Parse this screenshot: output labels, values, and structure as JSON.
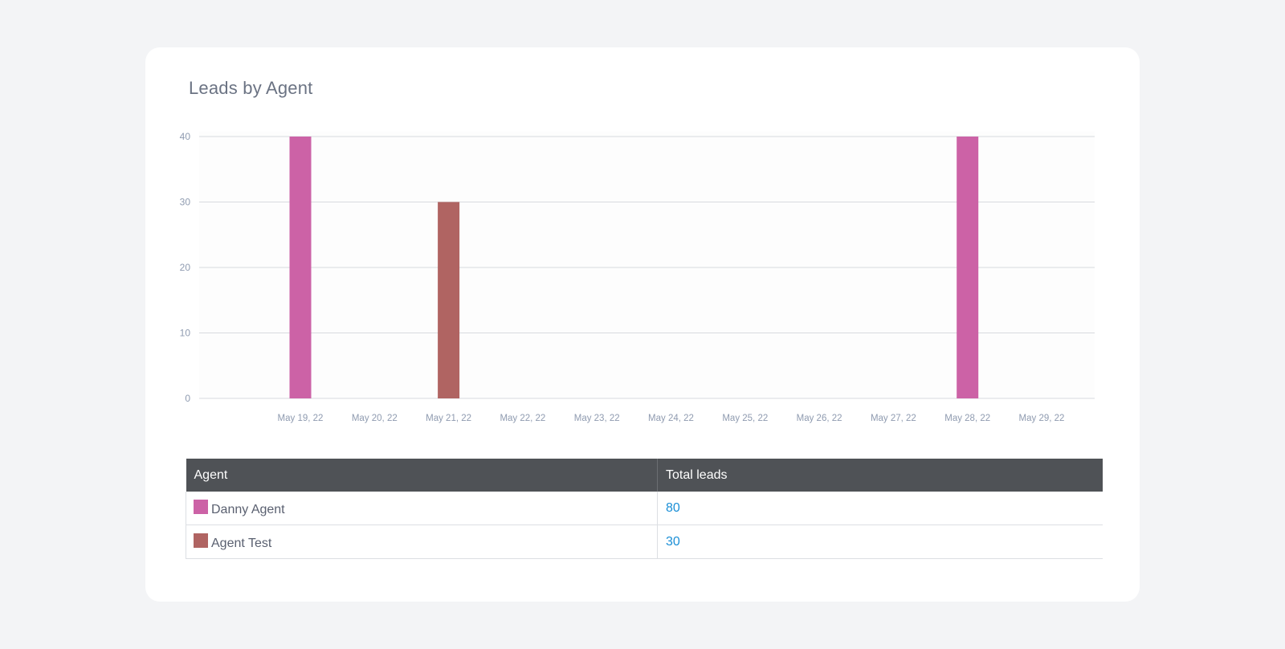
{
  "card": {
    "title": "Leads by Agent"
  },
  "chart_data": {
    "type": "bar",
    "title": "Leads by Agent",
    "xlabel": "",
    "ylabel": "",
    "categories": [
      "May 19, 22",
      "May 20, 22",
      "May 21, 22",
      "May 22, 22",
      "May 23, 22",
      "May 24, 22",
      "May 25, 22",
      "May 26, 22",
      "May 27, 22",
      "May 28, 22",
      "May 29, 22"
    ],
    "series": [
      {
        "name": "Danny Agent",
        "color": "#cc62a6",
        "values": [
          40,
          0,
          0,
          0,
          0,
          0,
          0,
          0,
          0,
          40,
          0
        ]
      },
      {
        "name": "Agent Test",
        "color": "#b06462",
        "values": [
          0,
          0,
          30,
          0,
          0,
          0,
          0,
          0,
          0,
          0,
          0
        ]
      }
    ],
    "ylim": [
      0,
      40
    ],
    "yticks": [
      0,
      10,
      20,
      30,
      40
    ],
    "grid": true,
    "legend": "none"
  },
  "table": {
    "headers": [
      "Agent",
      "Total leads"
    ],
    "rows": [
      {
        "agent": "Danny Agent",
        "total": "80",
        "color": "#cc62a6"
      },
      {
        "agent": "Agent Test",
        "total": "30",
        "color": "#b06462"
      }
    ]
  }
}
